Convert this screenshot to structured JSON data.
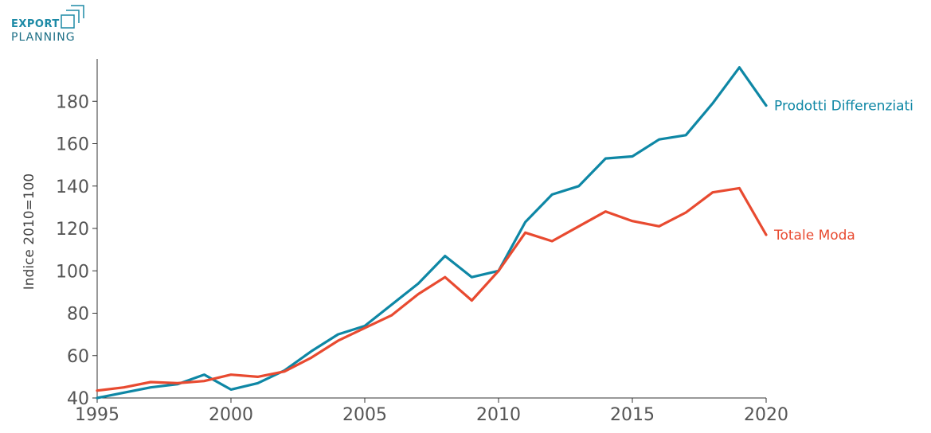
{
  "logo": {
    "line1": "EXPORT",
    "line2": "PLANNING"
  },
  "chart_data": {
    "type": "line",
    "title": "",
    "xlabel": "",
    "ylabel": "Indice 2010=100",
    "x": [
      1995,
      1996,
      1997,
      1998,
      1999,
      2000,
      2001,
      2002,
      2003,
      2004,
      2005,
      2006,
      2007,
      2008,
      2009,
      2010,
      2011,
      2012,
      2013,
      2014,
      2015,
      2016,
      2017,
      2018,
      2019,
      2020
    ],
    "xlim": [
      1995,
      2020
    ],
    "ylim": [
      40,
      200
    ],
    "xticks": [
      1995,
      2000,
      2005,
      2010,
      2015,
      2020
    ],
    "yticks": [
      40,
      60,
      80,
      100,
      120,
      140,
      160,
      180
    ],
    "grid": false,
    "legend": "end-of-line labels",
    "series": [
      {
        "name": "Prodotti Differenziati",
        "color": "#0e87a5",
        "values": [
          40,
          42.5,
          45,
          46.5,
          51,
          44,
          47,
          53,
          62,
          70,
          74,
          84,
          94,
          107,
          97,
          100,
          123,
          136,
          140,
          153,
          154,
          162,
          164,
          179,
          196,
          178
        ]
      },
      {
        "name": "Totale Moda",
        "color": "#e84a30",
        "values": [
          43.5,
          45,
          47.5,
          47,
          48,
          51,
          50,
          52.5,
          59,
          67,
          73,
          79,
          89,
          97,
          86,
          100,
          118,
          114,
          121,
          128,
          123.5,
          121,
          127.5,
          137,
          139,
          117
        ]
      }
    ]
  }
}
